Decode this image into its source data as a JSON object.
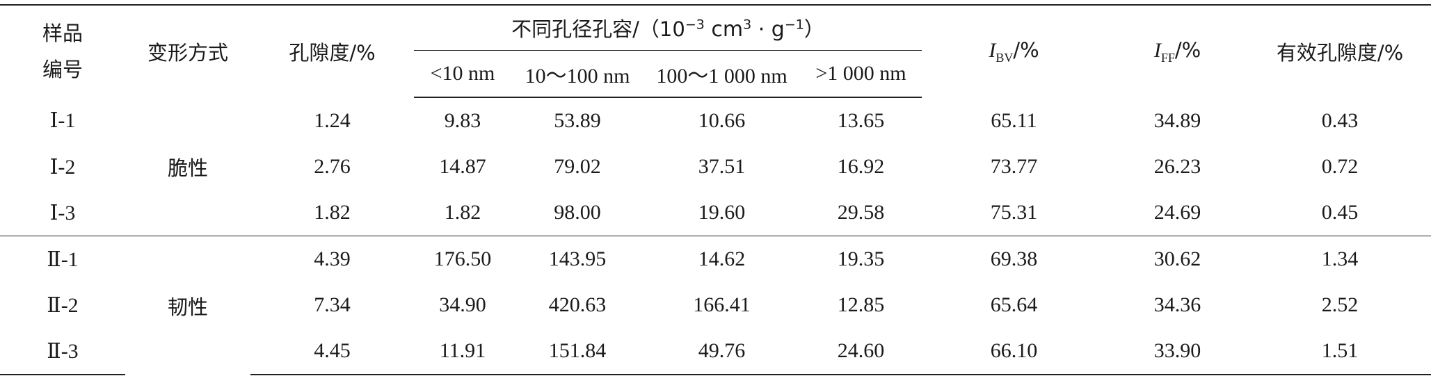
{
  "header": {
    "sample_id": "样品\n编号",
    "deformation": "变形方式",
    "porosity": "孔隙度/%",
    "group_prefix": "不同孔径孔容/（10",
    "group_exp": "−3",
    "group_mid": " cm",
    "group_exp2": "3",
    "group_mid2": " · g",
    "group_exp3": "−1",
    "group_suffix": "）",
    "sub_cols": [
      "<10 nm",
      "10～100 nm",
      "100～1 000 nm",
      ">1 000 nm"
    ],
    "ibv_I": "I",
    "ibv_sub": "BV",
    "ibv_unit": "/%",
    "iff_I": "I",
    "iff_sub": "FF",
    "iff_unit": "/%",
    "eff_porosity": "有效孔隙度/%"
  },
  "groups": [
    {
      "mode": "脆性",
      "rows": [
        {
          "id": "Ⅰ-1",
          "porosity": "1.24",
          "v1": "9.83",
          "v2": "53.89",
          "v3": "10.66",
          "v4": "13.65",
          "ibv": "65.11",
          "iff": "34.89",
          "eff": "0.43"
        },
        {
          "id": "Ⅰ-2",
          "porosity": "2.76",
          "v1": "14.87",
          "v2": "79.02",
          "v3": "37.51",
          "v4": "16.92",
          "ibv": "73.77",
          "iff": "26.23",
          "eff": "0.72"
        },
        {
          "id": "Ⅰ-3",
          "porosity": "1.82",
          "v1": "1.82",
          "v2": "98.00",
          "v3": "19.60",
          "v4": "29.58",
          "ibv": "75.31",
          "iff": "24.69",
          "eff": "0.45"
        }
      ]
    },
    {
      "mode": "韧性",
      "rows": [
        {
          "id": "Ⅱ-1",
          "porosity": "4.39",
          "v1": "176.50",
          "v2": "143.95",
          "v3": "14.62",
          "v4": "19.35",
          "ibv": "69.38",
          "iff": "30.62",
          "eff": "1.34"
        },
        {
          "id": "Ⅱ-2",
          "porosity": "7.34",
          "v1": "34.90",
          "v2": "420.63",
          "v3": "166.41",
          "v4": "12.85",
          "ibv": "65.64",
          "iff": "34.36",
          "eff": "2.52"
        },
        {
          "id": "Ⅱ-3",
          "porosity": "4.45",
          "v1": "11.91",
          "v2": "151.84",
          "v3": "49.76",
          "v4": "24.60",
          "ibv": "66.10",
          "iff": "33.90",
          "eff": "1.51"
        }
      ]
    }
  ]
}
